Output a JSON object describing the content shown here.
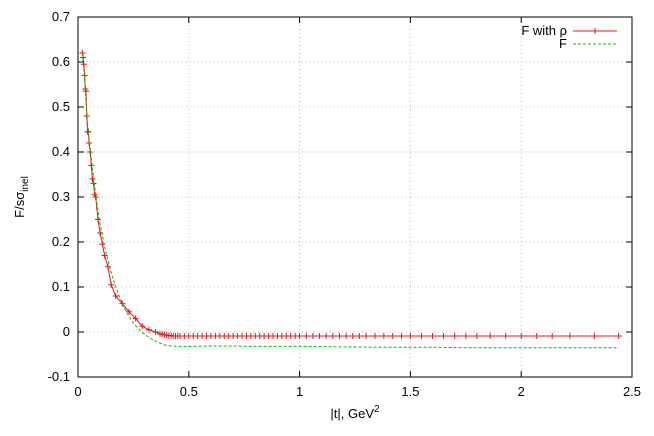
{
  "chart_data": {
    "type": "line",
    "title": "",
    "xlabel": {
      "base": "|t|, GeV",
      "sup": "2"
    },
    "ylabel": {
      "base": "F/s",
      "sigma": "σ",
      "sub": "inel"
    },
    "xlim": [
      0,
      2.5
    ],
    "ylim": [
      -0.1,
      0.7
    ],
    "xticks": [
      "0",
      "0.5",
      "1",
      "1.5",
      "2",
      "2.5"
    ],
    "yticks": [
      "-0.1",
      "0",
      "0.1",
      "0.2",
      "0.3",
      "0.4",
      "0.5",
      "0.6",
      "0.7"
    ],
    "xtick_values": [
      0,
      0.5,
      1,
      1.5,
      2,
      2.5
    ],
    "ytick_values": [
      -0.1,
      0,
      0.1,
      0.2,
      0.3,
      0.4,
      0.5,
      0.6,
      0.7
    ],
    "grid": true,
    "legend_position": "top-right",
    "series": [
      {
        "name": "F with ρ",
        "color": "#e41a1c",
        "style": "line-with-plus-markers",
        "x": [
          0.02,
          0.023,
          0.026,
          0.03,
          0.033,
          0.036,
          0.04,
          0.043,
          0.047,
          0.05,
          0.055,
          0.06,
          0.065,
          0.07,
          0.075,
          0.08,
          0.09,
          0.1,
          0.11,
          0.12,
          0.135,
          0.15,
          0.17,
          0.2,
          0.23,
          0.26,
          0.29,
          0.32,
          0.35,
          0.37,
          0.38,
          0.39,
          0.4,
          0.41,
          0.42,
          0.43,
          0.44,
          0.45,
          0.46,
          0.48,
          0.5,
          0.52,
          0.54,
          0.56,
          0.58,
          0.6,
          0.62,
          0.64,
          0.66,
          0.68,
          0.7,
          0.72,
          0.74,
          0.76,
          0.78,
          0.8,
          0.82,
          0.84,
          0.86,
          0.88,
          0.9,
          0.92,
          0.94,
          0.96,
          0.98,
          1.0,
          1.03,
          1.06,
          1.09,
          1.12,
          1.15,
          1.18,
          1.21,
          1.24,
          1.27,
          1.3,
          1.34,
          1.38,
          1.42,
          1.46,
          1.5,
          1.55,
          1.6,
          1.65,
          1.7,
          1.75,
          1.8,
          1.86,
          1.93,
          2.0,
          2.07,
          2.14,
          2.22,
          2.33,
          2.44
        ],
        "y": [
          0.62,
          0.61,
          0.595,
          0.57,
          0.54,
          0.535,
          0.48,
          0.445,
          0.445,
          0.42,
          0.4,
          0.37,
          0.34,
          0.33,
          0.305,
          0.3,
          0.25,
          0.22,
          0.195,
          0.17,
          0.145,
          0.105,
          0.08,
          0.063,
          0.045,
          0.03,
          0.013,
          0.005,
          0.0,
          -0.004,
          -0.005,
          -0.006,
          -0.007,
          -0.008,
          -0.008,
          -0.009,
          -0.009,
          -0.009,
          -0.009,
          -0.009,
          -0.009,
          -0.009,
          -0.009,
          -0.009,
          -0.009,
          -0.009,
          -0.009,
          -0.009,
          -0.009,
          -0.009,
          -0.009,
          -0.009,
          -0.009,
          -0.009,
          -0.009,
          -0.009,
          -0.009,
          -0.009,
          -0.009,
          -0.009,
          -0.009,
          -0.009,
          -0.009,
          -0.009,
          -0.009,
          -0.009,
          -0.009,
          -0.009,
          -0.009,
          -0.009,
          -0.009,
          -0.009,
          -0.009,
          -0.009,
          -0.009,
          -0.009,
          -0.009,
          -0.009,
          -0.009,
          -0.009,
          -0.009,
          -0.009,
          -0.009,
          -0.009,
          -0.009,
          -0.009,
          -0.009,
          -0.009,
          -0.009,
          -0.009,
          -0.009,
          -0.009,
          -0.009,
          -0.009,
          -0.009
        ]
      },
      {
        "name": "F",
        "color": "#00c000",
        "style": "dashed-line",
        "x": [
          0.02,
          0.03,
          0.04,
          0.05,
          0.06,
          0.07,
          0.08,
          0.09,
          0.1,
          0.12,
          0.14,
          0.16,
          0.18,
          0.2,
          0.22,
          0.24,
          0.26,
          0.28,
          0.3,
          0.33,
          0.36,
          0.4,
          0.45,
          0.5,
          0.6,
          0.7,
          0.8,
          1.0,
          1.2,
          1.4,
          1.6,
          1.8,
          2.0,
          2.2,
          2.44
        ],
        "y": [
          0.62,
          0.56,
          0.48,
          0.43,
          0.385,
          0.345,
          0.305,
          0.27,
          0.24,
          0.19,
          0.15,
          0.115,
          0.087,
          0.063,
          0.043,
          0.027,
          0.014,
          0.004,
          -0.005,
          -0.015,
          -0.023,
          -0.03,
          -0.032,
          -0.032,
          -0.031,
          -0.031,
          -0.032,
          -0.032,
          -0.033,
          -0.034,
          -0.034,
          -0.035,
          -0.035,
          -0.035,
          -0.035
        ]
      }
    ]
  }
}
